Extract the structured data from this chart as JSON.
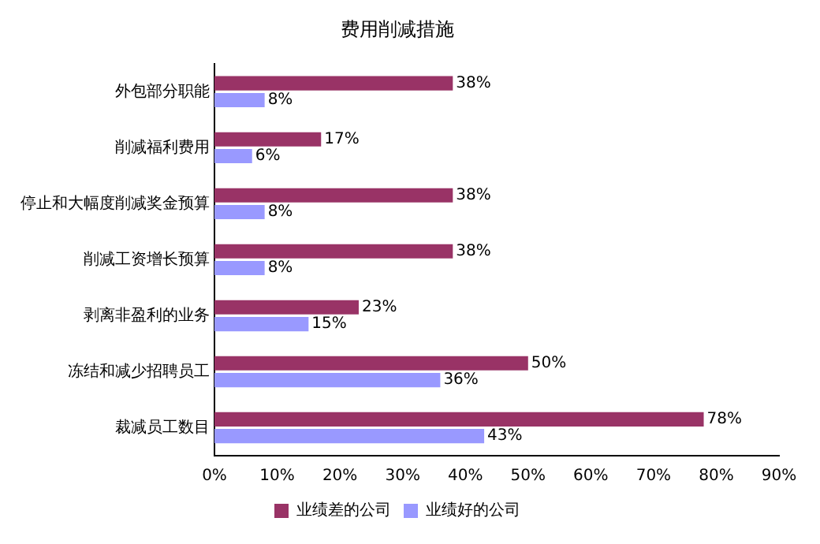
{
  "chart_data": {
    "type": "bar",
    "orientation": "horizontal",
    "title": "费用削减措施",
    "categories": [
      "外包部分职能",
      "削减福利费用",
      "停止和大幅度削减奖金预算",
      "削减工资增长预算",
      "剥离非盈利的业务",
      "冻结和减少招聘员工",
      "裁减员工数目"
    ],
    "series": [
      {
        "name": "业绩差的公司",
        "color": "#993366",
        "values": [
          38,
          17,
          38,
          38,
          23,
          50,
          78
        ],
        "value_labels": [
          "38%",
          "17%",
          "38%",
          "38%",
          "23%",
          "50%",
          "78%"
        ]
      },
      {
        "name": "业绩好的公司",
        "color": "#9999ff",
        "values": [
          8,
          6,
          8,
          8,
          15,
          36,
          43
        ],
        "value_labels": [
          "8%",
          "6%",
          "8%",
          "8%",
          "15%",
          "36%",
          "43%"
        ]
      }
    ],
    "xlim": [
      0,
      90
    ],
    "xticks": [
      {
        "value": 0,
        "label": "0%"
      },
      {
        "value": 10,
        "label": "10%"
      },
      {
        "value": 20,
        "label": "20%"
      },
      {
        "value": 30,
        "label": "30%"
      },
      {
        "value": 40,
        "label": "40%"
      },
      {
        "value": 50,
        "label": "50%"
      },
      {
        "value": 60,
        "label": "60%"
      },
      {
        "value": 70,
        "label": "70%"
      },
      {
        "value": 80,
        "label": "80%"
      },
      {
        "value": 90,
        "label": "90%"
      }
    ],
    "grid": false,
    "legend": "bottom"
  }
}
